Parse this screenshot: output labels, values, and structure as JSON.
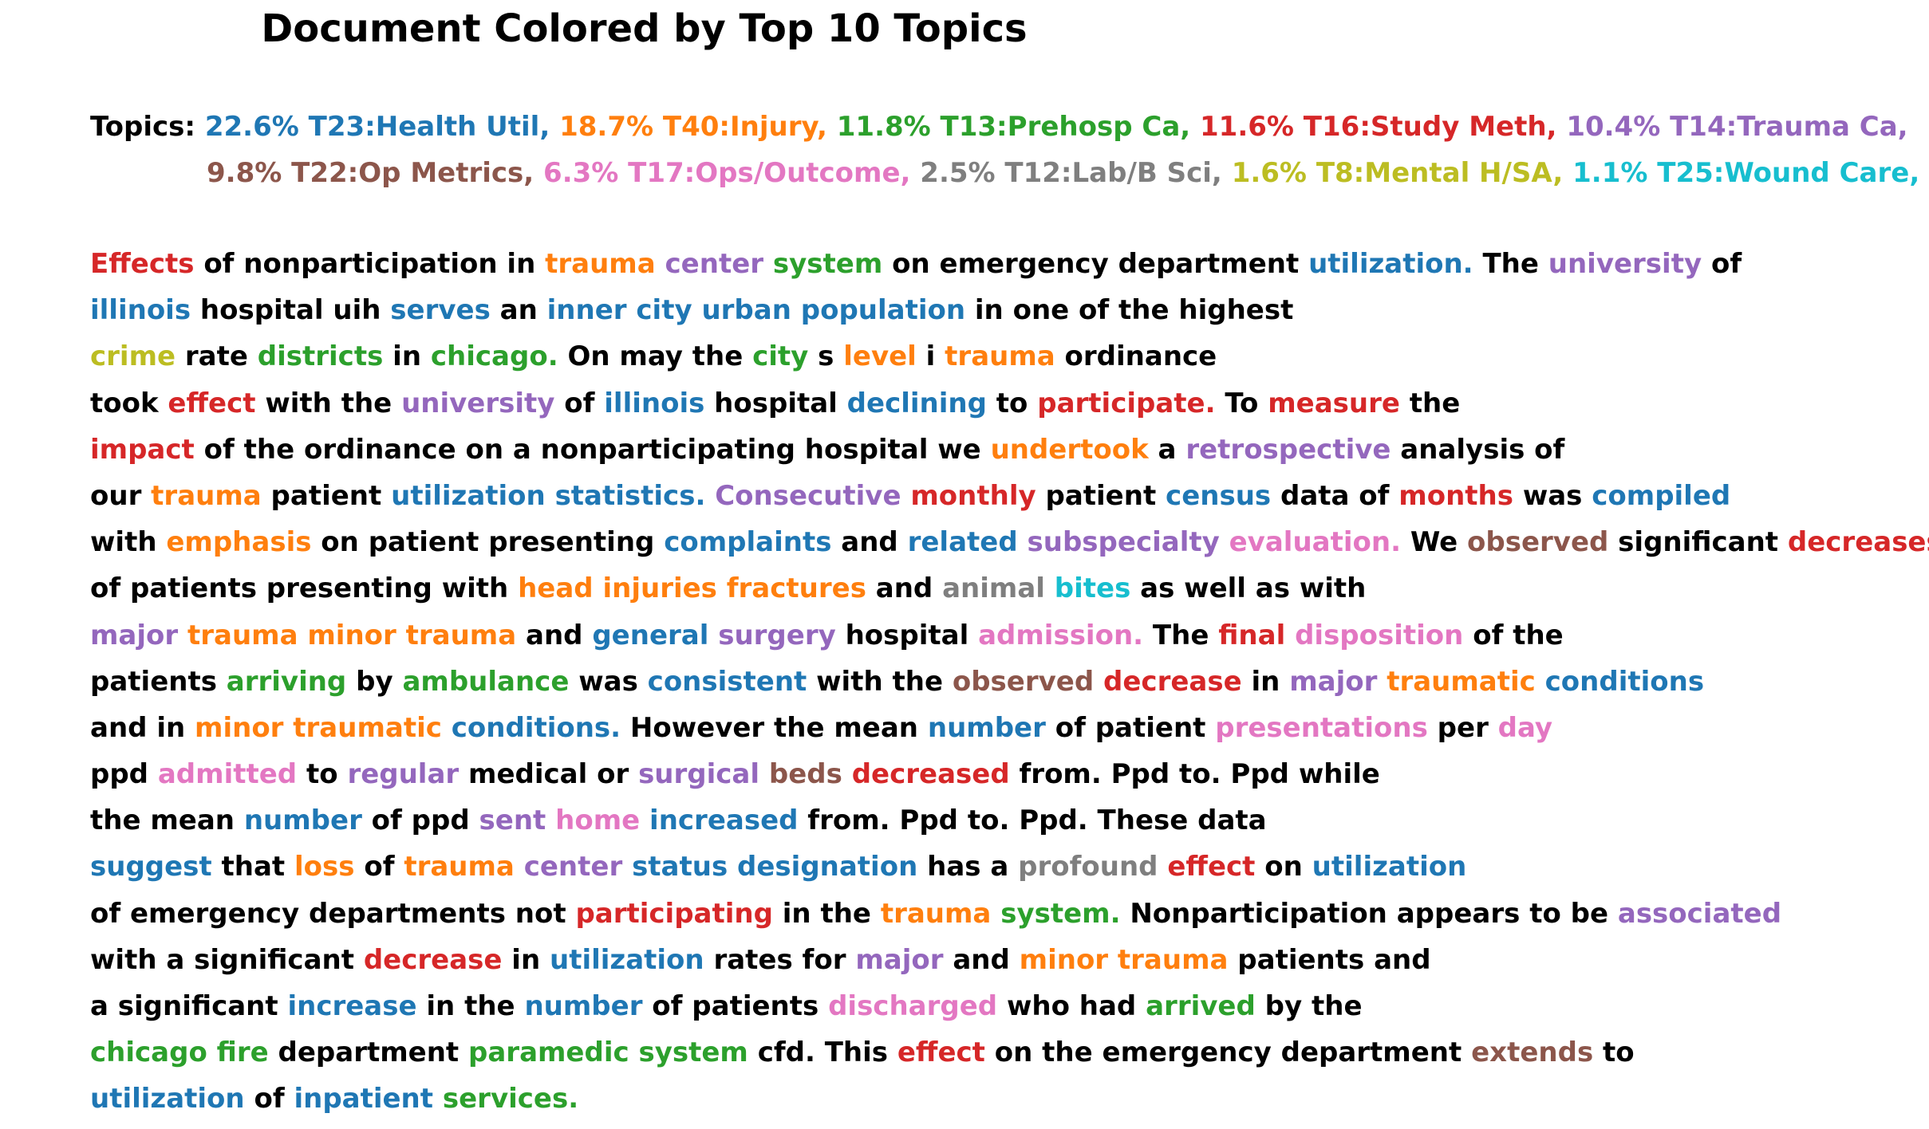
{
  "title": "Document Colored by Top 10 Topics",
  "colors": {
    "T23": "#1f77b4",
    "T40": "#ff7f0e",
    "T13": "#2ca02c",
    "T16": "#d62728",
    "T14": "#9467bd",
    "T22": "#8c564b",
    "T17": "#e377c2",
    "T12": "#7f7f7f",
    "T8": "#bcbd22",
    "T25": "#17becf"
  },
  "topics_prefix": "Topics: ",
  "topics_lines": [
    [
      {
        "t": "22.6% T23:Health Util, ",
        "c": "T23"
      },
      {
        "t": "18.7% T40:Injury, ",
        "c": "T40"
      },
      {
        "t": "11.8% T13:Prehosp Ca, ",
        "c": "T13"
      },
      {
        "t": "11.6% T16:Study Meth, ",
        "c": "T16"
      },
      {
        "t": "10.4% T14:Trauma Ca, ",
        "c": "T14"
      }
    ],
    [
      {
        "t": "9.8% T22:Op Metrics, ",
        "c": "T22"
      },
      {
        "t": "6.3% T17:Ops/Outcome, ",
        "c": "T17"
      },
      {
        "t": "2.5% T12:Lab/B Sci, ",
        "c": "T12"
      },
      {
        "t": "1.6% T8:Mental H/SA, ",
        "c": "T8"
      },
      {
        "t": "1.1% T25:Wound Care, ",
        "c": "T25"
      }
    ]
  ],
  "document_lines": [
    [
      [
        "Effects",
        "T16"
      ],
      [
        " of nonparticipation in "
      ],
      [
        "trauma",
        "T40"
      ],
      [
        " "
      ],
      [
        "center",
        "T14"
      ],
      [
        " "
      ],
      [
        "system",
        "T13"
      ],
      [
        " on emergency department "
      ],
      [
        "utilization.",
        "T23"
      ],
      [
        " The "
      ],
      [
        "university",
        "T14"
      ],
      [
        " of"
      ]
    ],
    [
      [
        "illinois",
        "T23"
      ],
      [
        " hospital uih "
      ],
      [
        "serves",
        "T23"
      ],
      [
        " an "
      ],
      [
        "inner city urban population",
        "T23"
      ],
      [
        " in one of the highest"
      ]
    ],
    [
      [
        "crime",
        "T8"
      ],
      [
        " rate "
      ],
      [
        "districts",
        "T13"
      ],
      [
        " in "
      ],
      [
        "chicago.",
        "T13"
      ],
      [
        " On may the "
      ],
      [
        "city",
        "T13"
      ],
      [
        " s "
      ],
      [
        "level",
        "T40"
      ],
      [
        " i "
      ],
      [
        "trauma",
        "T40"
      ],
      [
        " ordinance"
      ]
    ],
    [
      [
        "took "
      ],
      [
        "effect",
        "T16"
      ],
      [
        " with the "
      ],
      [
        "university",
        "T14"
      ],
      [
        " of "
      ],
      [
        "illinois",
        "T23"
      ],
      [
        " hospital "
      ],
      [
        "declining",
        "T23"
      ],
      [
        " to "
      ],
      [
        "participate.",
        "T16"
      ],
      [
        " To "
      ],
      [
        "measure",
        "T16"
      ],
      [
        " the"
      ]
    ],
    [
      [
        "impact",
        "T16"
      ],
      [
        " of the ordinance on a nonparticipating hospital we "
      ],
      [
        "undertook",
        "T40"
      ],
      [
        " a "
      ],
      [
        "retrospective",
        "T14"
      ],
      [
        " analysis of"
      ]
    ],
    [
      [
        "our "
      ],
      [
        "trauma",
        "T40"
      ],
      [
        " patient "
      ],
      [
        "utilization statistics.",
        "T23"
      ],
      [
        " "
      ],
      [
        "Consecutive",
        "T14"
      ],
      [
        " "
      ],
      [
        "monthly",
        "T16"
      ],
      [
        " patient "
      ],
      [
        "census",
        "T23"
      ],
      [
        " data of "
      ],
      [
        "months",
        "T16"
      ],
      [
        " was "
      ],
      [
        "compiled",
        "T23"
      ]
    ],
    [
      [
        "with "
      ],
      [
        "emphasis",
        "T40"
      ],
      [
        " on patient presenting "
      ],
      [
        "complaints",
        "T23"
      ],
      [
        " and "
      ],
      [
        "related",
        "T23"
      ],
      [
        " "
      ],
      [
        "subspecialty",
        "T14"
      ],
      [
        " "
      ],
      [
        "evaluation.",
        "T17"
      ],
      [
        " We "
      ],
      [
        "observed",
        "T22"
      ],
      [
        " significant "
      ],
      [
        "decreases",
        "T16"
      ]
    ],
    [
      [
        "of patients presenting with "
      ],
      [
        "head injuries fractures",
        "T40"
      ],
      [
        " and "
      ],
      [
        "animal",
        "T12"
      ],
      [
        " "
      ],
      [
        "bites",
        "T25"
      ],
      [
        " as well as with"
      ]
    ],
    [
      [
        "major",
        "T14"
      ],
      [
        " "
      ],
      [
        "trauma minor trauma",
        "T40"
      ],
      [
        " and "
      ],
      [
        "general",
        "T23"
      ],
      [
        " "
      ],
      [
        "surgery",
        "T14"
      ],
      [
        " hospital "
      ],
      [
        "admission.",
        "T17"
      ],
      [
        " The "
      ],
      [
        "final",
        "T16"
      ],
      [
        " "
      ],
      [
        "disposition",
        "T17"
      ],
      [
        " of the"
      ]
    ],
    [
      [
        "patients "
      ],
      [
        "arriving",
        "T13"
      ],
      [
        " by "
      ],
      [
        "ambulance",
        "T13"
      ],
      [
        " was "
      ],
      [
        "consistent",
        "T23"
      ],
      [
        " with the "
      ],
      [
        "observed",
        "T22"
      ],
      [
        " "
      ],
      [
        "decrease",
        "T16"
      ],
      [
        " in "
      ],
      [
        "major",
        "T14"
      ],
      [
        " "
      ],
      [
        "traumatic",
        "T40"
      ],
      [
        " "
      ],
      [
        "conditions",
        "T23"
      ]
    ],
    [
      [
        "and in "
      ],
      [
        "minor traumatic",
        "T40"
      ],
      [
        " "
      ],
      [
        "conditions.",
        "T23"
      ],
      [
        " However the mean "
      ],
      [
        "number",
        "T23"
      ],
      [
        " of patient "
      ],
      [
        "presentations",
        "T17"
      ],
      [
        " per "
      ],
      [
        "day",
        "T17"
      ]
    ],
    [
      [
        "ppd "
      ],
      [
        "admitted",
        "T17"
      ],
      [
        " to "
      ],
      [
        "regular",
        "T14"
      ],
      [
        " medical or "
      ],
      [
        "surgical",
        "T14"
      ],
      [
        " "
      ],
      [
        "beds",
        "T22"
      ],
      [
        " "
      ],
      [
        "decreased",
        "T16"
      ],
      [
        " from. Ppd to. Ppd while"
      ]
    ],
    [
      [
        "the mean "
      ],
      [
        "number",
        "T23"
      ],
      [
        " of ppd "
      ],
      [
        "sent",
        "T14"
      ],
      [
        " "
      ],
      [
        "home",
        "T17"
      ],
      [
        " "
      ],
      [
        "increased",
        "T23"
      ],
      [
        " from. Ppd to. Ppd. These data"
      ]
    ],
    [
      [
        "suggest",
        "T23"
      ],
      [
        " that "
      ],
      [
        "loss",
        "T40"
      ],
      [
        " of "
      ],
      [
        "trauma",
        "T40"
      ],
      [
        " "
      ],
      [
        "center",
        "T14"
      ],
      [
        " "
      ],
      [
        "status designation",
        "T23"
      ],
      [
        " has a "
      ],
      [
        "profound",
        "T12"
      ],
      [
        " "
      ],
      [
        "effect",
        "T16"
      ],
      [
        " on "
      ],
      [
        "utilization",
        "T23"
      ]
    ],
    [
      [
        "of emergency departments not "
      ],
      [
        "participating",
        "T16"
      ],
      [
        " in the "
      ],
      [
        "trauma",
        "T40"
      ],
      [
        " "
      ],
      [
        "system.",
        "T13"
      ],
      [
        " Nonparticipation appears to be "
      ],
      [
        "associated",
        "T14"
      ]
    ],
    [
      [
        "with a significant "
      ],
      [
        "decrease",
        "T16"
      ],
      [
        " in "
      ],
      [
        "utilization",
        "T23"
      ],
      [
        " rates for "
      ],
      [
        "major",
        "T14"
      ],
      [
        " and "
      ],
      [
        "minor trauma",
        "T40"
      ],
      [
        " patients and"
      ]
    ],
    [
      [
        "a significant "
      ],
      [
        "increase",
        "T23"
      ],
      [
        " in the "
      ],
      [
        "number",
        "T23"
      ],
      [
        " of patients "
      ],
      [
        "discharged",
        "T17"
      ],
      [
        " who had "
      ],
      [
        "arrived",
        "T13"
      ],
      [
        " by the"
      ]
    ],
    [
      [
        "chicago fire",
        "T13"
      ],
      [
        " department "
      ],
      [
        "paramedic system",
        "T13"
      ],
      [
        " cfd. This "
      ],
      [
        "effect",
        "T16"
      ],
      [
        " on the emergency department "
      ],
      [
        "extends",
        "T22"
      ],
      [
        " to"
      ]
    ],
    [
      [
        "utilization",
        "T23"
      ],
      [
        " of "
      ],
      [
        "inpatient",
        "T23"
      ],
      [
        " "
      ],
      [
        "services.",
        "T13"
      ]
    ]
  ]
}
